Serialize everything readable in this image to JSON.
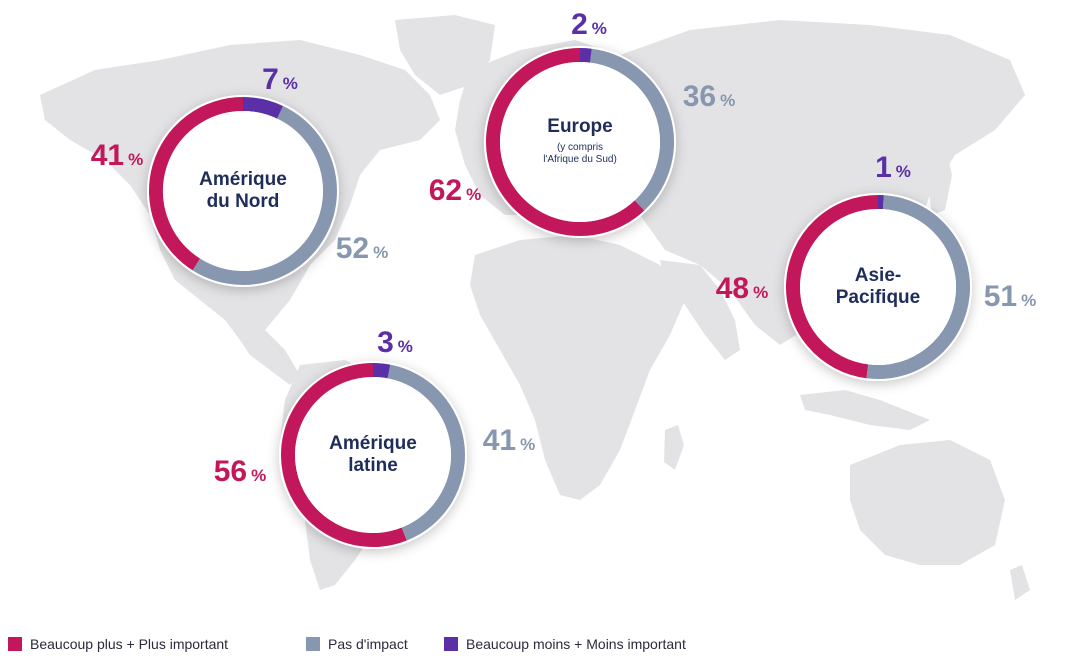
{
  "colors": {
    "more": "#c2185b",
    "none": "#8797af",
    "less": "#5b2fa6",
    "map": "#e3e3e5",
    "center_text": "#1f2d5a",
    "background": "#ffffff"
  },
  "chart_data": {
    "type": "pie",
    "style": "donut",
    "categories": [
      "Beaucoup plus + Plus important",
      "Pas d'impact",
      "Beaucoup moins + Moins important"
    ],
    "series": [
      {
        "name": "Amérique du Nord",
        "title_lines": [
          "Amérique",
          "du Nord"
        ],
        "subtitle_lines": [],
        "values": [
          41,
          52,
          7
        ],
        "labels": [
          "41",
          "52",
          "7"
        ]
      },
      {
        "name": "Europe",
        "title_lines": [
          "Europe"
        ],
        "subtitle_lines": [
          "(y compris",
          "l'Afrique du Sud)"
        ],
        "values": [
          62,
          36,
          2
        ],
        "labels": [
          "62",
          "36",
          "2"
        ]
      },
      {
        "name": "Asie-Pacifique",
        "title_lines": [
          "Asie-",
          "Pacifique"
        ],
        "subtitle_lines": [],
        "values": [
          48,
          51,
          1
        ],
        "labels": [
          "48",
          "51",
          "1"
        ]
      },
      {
        "name": "Amérique latine",
        "title_lines": [
          "Amérique",
          "latine"
        ],
        "subtitle_lines": [],
        "values": [
          56,
          41,
          3
        ],
        "labels": [
          "56",
          "41",
          "3"
        ]
      }
    ],
    "unit": "%",
    "legend_position": "bottom"
  },
  "legend": [
    {
      "label": "Beaucoup plus + Plus important",
      "color": "#c2185b"
    },
    {
      "label": "Pas d'impact",
      "color": "#8797af"
    },
    {
      "label": "Beaucoup moins + Moins important",
      "color": "#5b2fa6"
    }
  ]
}
